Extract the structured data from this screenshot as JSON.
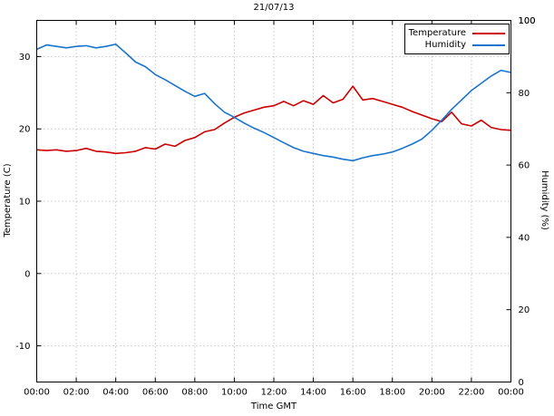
{
  "chart_data": {
    "type": "line",
    "title": "21/07/13",
    "xlabel": "Time GMT",
    "ylabel": "Temperature (C)",
    "y2label": "Humidity (%)",
    "grid": true,
    "legend_position": "top-right",
    "xlim": [
      0,
      24
    ],
    "x_tick_hours": [
      0,
      2,
      4,
      6,
      8,
      10,
      12,
      14,
      16,
      18,
      20,
      22,
      24
    ],
    "x_tick_labels": [
      "00:00",
      "02:00",
      "04:00",
      "06:00",
      "08:00",
      "10:00",
      "12:00",
      "14:00",
      "16:00",
      "18:00",
      "20:00",
      "22:00",
      "00:00"
    ],
    "ylim_left": [
      -15,
      35
    ],
    "yticks_left": [
      -10,
      0,
      10,
      20,
      30
    ],
    "ylim_right": [
      0,
      100
    ],
    "yticks_right": [
      20,
      40,
      60,
      80,
      100
    ],
    "colors": {
      "temperature": "#cc0000",
      "humidity": "#1874cd",
      "grid": "#aaaaaa",
      "border": "#000000"
    },
    "x": [
      0,
      0.5,
      1,
      1.5,
      2,
      2.5,
      3,
      3.5,
      4,
      4.5,
      5,
      5.5,
      6,
      6.5,
      7,
      7.5,
      8,
      8.5,
      9,
      9.5,
      10,
      10.5,
      11,
      11.5,
      12,
      12.5,
      13,
      13.5,
      14,
      14.5,
      15,
      15.5,
      16,
      16.5,
      17,
      17.5,
      18,
      18.5,
      19,
      19.5,
      20,
      20.5,
      21,
      21.5,
      22,
      22.5,
      23,
      23.5,
      24
    ],
    "series": [
      {
        "name": "Temperature",
        "axis": "left",
        "color": "#cc0000",
        "values": [
          17.1,
          17.0,
          17.1,
          16.9,
          17.0,
          17.3,
          16.9,
          16.8,
          16.6,
          16.7,
          16.9,
          17.4,
          17.2,
          17.9,
          17.6,
          18.4,
          18.8,
          19.6,
          19.9,
          20.8,
          21.6,
          22.2,
          22.6,
          23.0,
          23.2,
          23.8,
          23.2,
          23.9,
          23.4,
          24.6,
          23.6,
          24.1,
          25.9,
          24.0,
          24.2,
          23.8,
          23.4,
          23.0,
          22.4,
          21.9,
          21.4,
          21.0,
          22.3,
          20.7,
          20.4,
          21.2,
          20.2,
          19.9,
          19.8
        ]
      },
      {
        "name": "Humidity",
        "axis": "right",
        "color": "#1874cd",
        "values": [
          92.0,
          93.2,
          92.8,
          92.4,
          92.8,
          93.0,
          92.4,
          92.8,
          93.4,
          91.0,
          88.5,
          87.2,
          85.0,
          83.6,
          82.0,
          80.4,
          79.0,
          79.8,
          77.0,
          74.6,
          73.2,
          71.6,
          70.2,
          69.0,
          67.6,
          66.2,
          64.8,
          63.8,
          63.2,
          62.6,
          62.2,
          61.6,
          61.2,
          62.0,
          62.6,
          63.0,
          63.6,
          64.6,
          65.8,
          67.2,
          69.6,
          72.4,
          75.4,
          78.0,
          80.6,
          82.6,
          84.6,
          86.2,
          85.6
        ]
      }
    ]
  }
}
